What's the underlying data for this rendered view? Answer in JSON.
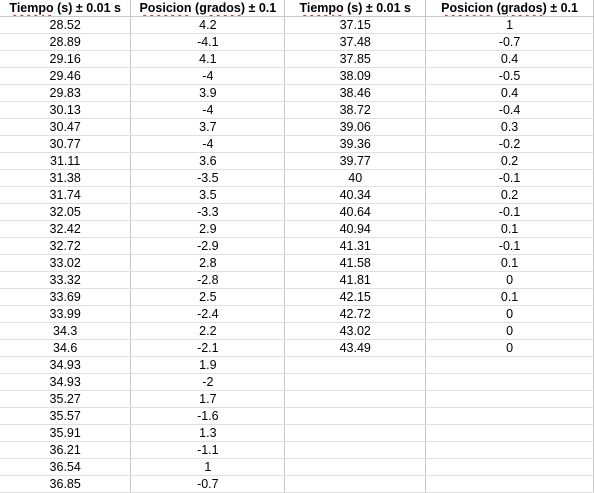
{
  "headers": {
    "tiempo_word_1": "Tiempo",
    "tiempo_rest_1": " (s) ± 0.01 s",
    "posicion_word_1": "Posicion",
    "posicion_mid_1": " (",
    "grados_word_1": "grados",
    "posicion_rest_1": ") ± 0.1",
    "tiempo_word_2": "Tiempo",
    "tiempo_rest_2": " (s) ± 0.01 s",
    "posicion_word_2": "Posicion",
    "posicion_mid_2": " (",
    "grados_word_2": "grados",
    "posicion_rest_2": ") ± 0.1"
  },
  "rows": [
    {
      "t1": "28.52",
      "p1": "4.2",
      "t2": "37.15",
      "p2": "1"
    },
    {
      "t1": "28.89",
      "p1": "-4.1",
      "t2": "37.48",
      "p2": "-0.7"
    },
    {
      "t1": "29.16",
      "p1": "4.1",
      "t2": "37.85",
      "p2": "0.4"
    },
    {
      "t1": "29.46",
      "p1": "-4",
      "t2": "38.09",
      "p2": "-0.5"
    },
    {
      "t1": "29.83",
      "p1": "3.9",
      "t2": "38.46",
      "p2": "0.4"
    },
    {
      "t1": "30.13",
      "p1": "-4",
      "t2": "38.72",
      "p2": "-0.4"
    },
    {
      "t1": "30.47",
      "p1": "3.7",
      "t2": "39.06",
      "p2": "0.3"
    },
    {
      "t1": "30.77",
      "p1": "-4",
      "t2": "39.36",
      "p2": "-0.2"
    },
    {
      "t1": "31.11",
      "p1": "3.6",
      "t2": "39.77",
      "p2": "0.2"
    },
    {
      "t1": "31.38",
      "p1": "-3.5",
      "t2": "40",
      "p2": "-0.1"
    },
    {
      "t1": "31.74",
      "p1": "3.5",
      "t2": "40.34",
      "p2": "0.2"
    },
    {
      "t1": "32.05",
      "p1": "-3.3",
      "t2": "40.64",
      "p2": "-0.1"
    },
    {
      "t1": "32.42",
      "p1": "2.9",
      "t2": "40.94",
      "p2": "0.1"
    },
    {
      "t1": "32.72",
      "p1": "-2.9",
      "t2": "41.31",
      "p2": "-0.1"
    },
    {
      "t1": "33.02",
      "p1": "2.8",
      "t2": "41.58",
      "p2": "0.1"
    },
    {
      "t1": "33.32",
      "p1": "-2.8",
      "t2": "41.81",
      "p2": "0"
    },
    {
      "t1": "33.69",
      "p1": "2.5",
      "t2": "42.15",
      "p2": "0.1"
    },
    {
      "t1": "33.99",
      "p1": "-2.4",
      "t2": "42.72",
      "p2": "0"
    },
    {
      "t1": "34.3",
      "p1": "2.2",
      "t2": "43.02",
      "p2": "0"
    },
    {
      "t1": "34.6",
      "p1": "-2.1",
      "t2": "43.49",
      "p2": "0"
    },
    {
      "t1": "34.93",
      "p1": "1.9",
      "t2": "",
      "p2": ""
    },
    {
      "t1": "34.93",
      "p1": "-2",
      "t2": "",
      "p2": ""
    },
    {
      "t1": "35.27",
      "p1": "1.7",
      "t2": "",
      "p2": ""
    },
    {
      "t1": "35.57",
      "p1": "-1.6",
      "t2": "",
      "p2": ""
    },
    {
      "t1": "35.91",
      "p1": "1.3",
      "t2": "",
      "p2": ""
    },
    {
      "t1": "36.21",
      "p1": "-1.1",
      "t2": "",
      "p2": ""
    },
    {
      "t1": "36.54",
      "p1": "1",
      "t2": "",
      "p2": ""
    },
    {
      "t1": "36.85",
      "p1": "-0.7",
      "t2": "",
      "p2": ""
    }
  ]
}
